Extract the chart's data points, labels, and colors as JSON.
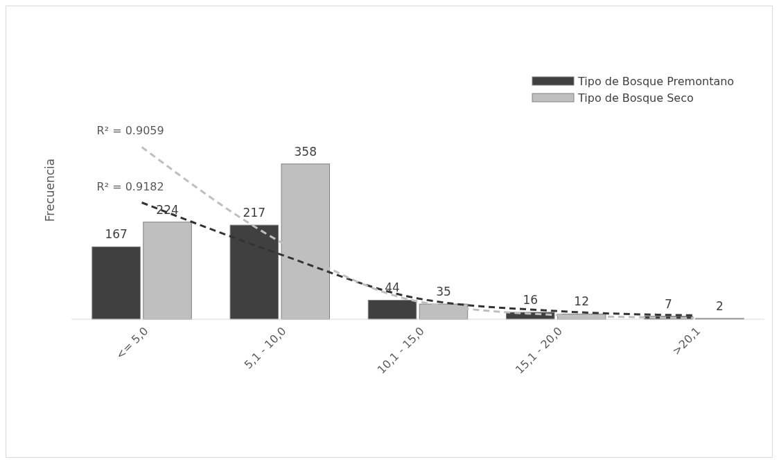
{
  "chart_data": {
    "type": "bar",
    "ylabel": "Frecuencia",
    "categories": [
      "<= 5,0",
      "5,1 - 10,0",
      "10,1 - 15,0",
      "15,1 - 20,0",
      ">20,1"
    ],
    "series": [
      {
        "name": "Tipo de Bosque Premontano",
        "color": "#404040",
        "values": [
          167,
          217,
          44,
          16,
          7
        ],
        "value_labels": [
          "167",
          "217",
          "44",
          "16",
          "7"
        ]
      },
      {
        "name": "Tipo de Bosque Seco",
        "color": "#bfbfbf",
        "values": [
          224,
          358,
          35,
          12,
          2
        ],
        "value_labels": [
          "224",
          "358",
          "35",
          "12",
          "2"
        ]
      },
      {
        "type": "line",
        "color": "#333333",
        "line_style": "dashed",
        "x": [
          "<= 5,0",
          "5,1 - 10,0",
          "10,1 - 15,0",
          "15,1 - 20,0",
          ">20,1"
        ],
        "values": [
          269,
          150,
          48,
          19,
          9
        ]
      },
      {
        "type": "line",
        "color": "#bfbfbf",
        "line_style": "dashed",
        "x": [
          "<= 5,0",
          "5,1 - 10,0",
          "10,1 - 15,0",
          "15,1 - 20,0",
          ">20,1"
        ],
        "values": [
          397,
          179,
          41,
          10,
          3
        ]
      }
    ],
    "legend": "top right",
    "grid": false,
    "annotations": [
      {
        "text": "R² = 0.9059",
        "x": "<= 5,0",
        "y": 397
      },
      {
        "text": "R² = 0.9182",
        "x": "<= 5,0",
        "y": 269
      }
    ]
  }
}
